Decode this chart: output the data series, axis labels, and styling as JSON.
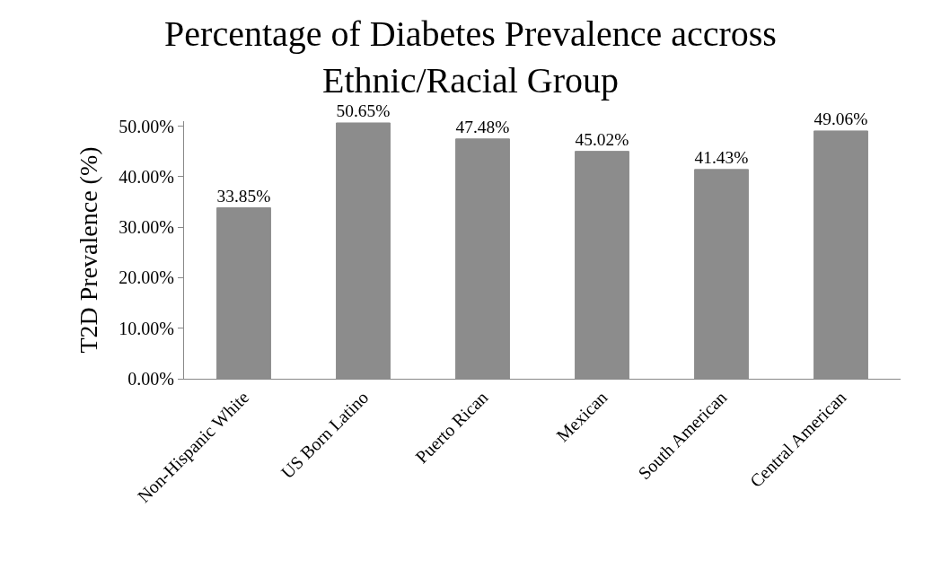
{
  "chart_data": {
    "type": "bar",
    "title": "Percentage of Diabetes Prevalence accross Ethnic/Racial Group",
    "ylabel": "T2D Prevalence (%)",
    "categories": [
      "Non-Hispanic White",
      "US Born Latino",
      "Puerto Rican",
      "Mexican",
      "South American",
      "Central American"
    ],
    "values": [
      33.85,
      50.65,
      47.48,
      45.02,
      41.43,
      49.06
    ],
    "value_labels": [
      "33.85%",
      "50.65%",
      "47.48%",
      "45.02%",
      "41.43%",
      "49.06%"
    ],
    "color": "#8c8c8c",
    "ylim": [
      0,
      51
    ],
    "yticks": [
      {
        "value": 0,
        "label": "0.00%"
      },
      {
        "value": 10,
        "label": "10.00%"
      },
      {
        "value": 20,
        "label": "20.00%"
      },
      {
        "value": 30,
        "label": "30.00%"
      },
      {
        "value": 40,
        "label": "40.00%"
      },
      {
        "value": 50,
        "label": "50.00%"
      }
    ],
    "grid": false,
    "legend": false
  }
}
